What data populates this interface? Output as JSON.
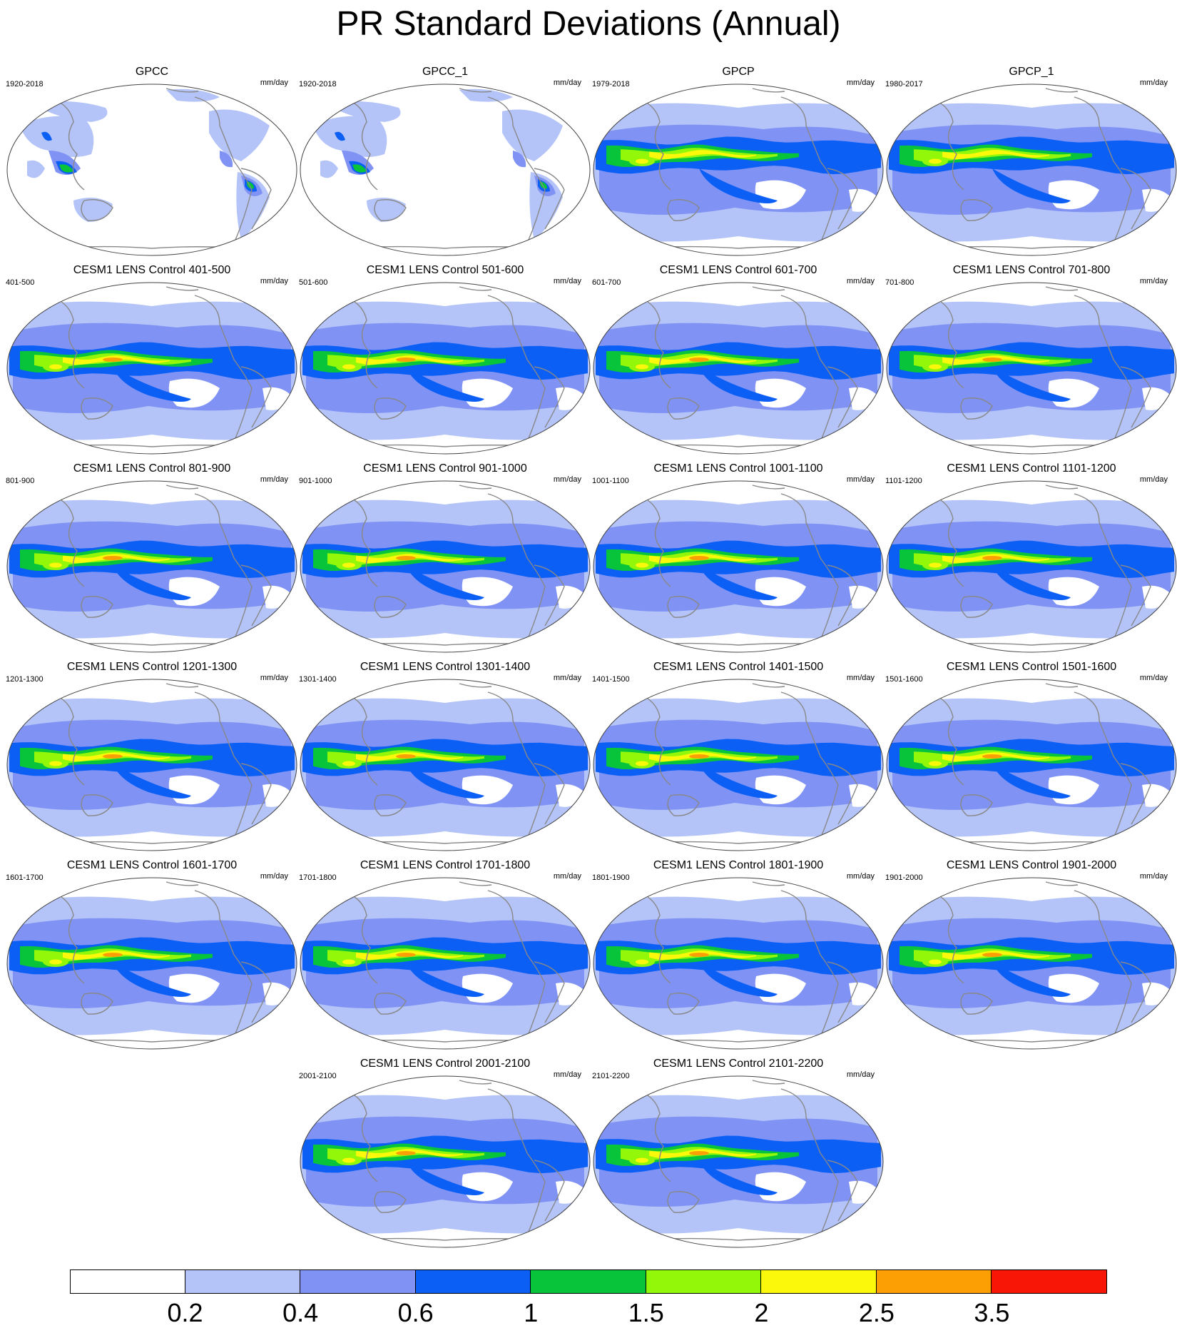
{
  "title": "PR Standard Deviations (Annual)",
  "units": "mm/day",
  "panels": [
    {
      "title": "GPCC",
      "period": "1920-2018",
      "kind": "gpcc"
    },
    {
      "title": "GPCC_1",
      "period": "1920-2018",
      "kind": "gpcc"
    },
    {
      "title": "GPCP",
      "period": "1979-2018",
      "kind": "gpcp"
    },
    {
      "title": "GPCP_1",
      "period": "1980-2017",
      "kind": "gpcp"
    },
    {
      "title": "CESM1 LENS Control 401-500",
      "period": "401-500",
      "kind": "model"
    },
    {
      "title": "CESM1 LENS Control 501-600",
      "period": "501-600",
      "kind": "model"
    },
    {
      "title": "CESM1 LENS Control 601-700",
      "period": "601-700",
      "kind": "model"
    },
    {
      "title": "CESM1 LENS Control 701-800",
      "period": "701-800",
      "kind": "model"
    },
    {
      "title": "CESM1 LENS Control 801-900",
      "period": "801-900",
      "kind": "model"
    },
    {
      "title": "CESM1 LENS Control 901-1000",
      "period": "901-1000",
      "kind": "model"
    },
    {
      "title": "CESM1 LENS Control 1001-1100",
      "period": "1001-1100",
      "kind": "model"
    },
    {
      "title": "CESM1 LENS Control 1101-1200",
      "period": "1101-1200",
      "kind": "model"
    },
    {
      "title": "CESM1 LENS Control 1201-1300",
      "period": "1201-1300",
      "kind": "model"
    },
    {
      "title": "CESM1 LENS Control 1301-1400",
      "period": "1301-1400",
      "kind": "model"
    },
    {
      "title": "CESM1 LENS Control 1401-1500",
      "period": "1401-1500",
      "kind": "model"
    },
    {
      "title": "CESM1 LENS Control 1501-1600",
      "period": "1501-1600",
      "kind": "model"
    },
    {
      "title": "CESM1 LENS Control 1601-1700",
      "period": "1601-1700",
      "kind": "model"
    },
    {
      "title": "CESM1 LENS Control 1701-1800",
      "period": "1701-1800",
      "kind": "model"
    },
    {
      "title": "CESM1 LENS Control 1801-1900",
      "period": "1801-1900",
      "kind": "model"
    },
    {
      "title": "CESM1 LENS Control 1901-2000",
      "period": "1901-2000",
      "kind": "model"
    },
    {
      "title": "CESM1 LENS Control 2001-2100",
      "period": "2001-2100",
      "kind": "model"
    },
    {
      "title": "CESM1 LENS Control 2101-2200",
      "period": "2101-2200",
      "kind": "model"
    }
  ],
  "colorbar": {
    "colors": [
      "#ffffff",
      "#b4c4f8",
      "#8093f5",
      "#0c5ff5",
      "#07c43b",
      "#93f709",
      "#fbf80b",
      "#fc9f05",
      "#f81607"
    ],
    "labels": [
      "0.2",
      "0.4",
      "0.6",
      "1",
      "1.5",
      "2",
      "2.5",
      "3.5"
    ]
  }
}
